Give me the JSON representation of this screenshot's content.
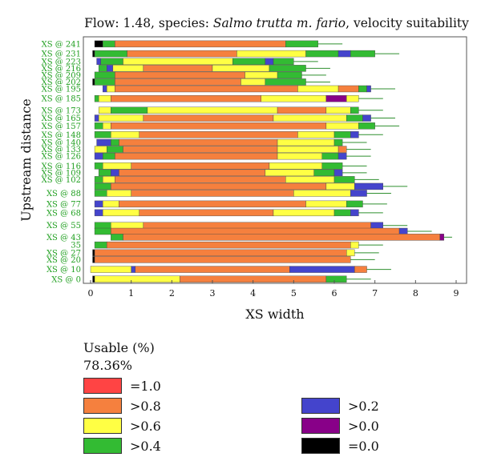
{
  "chart_data": {
    "type": "bar",
    "title_prefix": "Flow: 1.48, species: ",
    "title_species": "Salmo trutta m. fario",
    "title_suffix": ", velocity suitability",
    "xlabel": "XS width",
    "ylabel": "Upstream distance",
    "xlim": [
      0,
      9
    ],
    "xticks": [
      0,
      1,
      2,
      3,
      4,
      5,
      6,
      7,
      8,
      9
    ],
    "ylim": [
      -1,
      245
    ],
    "y_tick_labels": [
      {
        "label": "XS @ 241",
        "y": 241
      },
      {
        "label": "XS @ 231",
        "y": 231
      },
      {
        "label": "XS @ 223",
        "y": 223
      },
      {
        "label": "XS @ 216",
        "y": 216
      },
      {
        "label": "XS @ 209",
        "y": 209
      },
      {
        "label": "XS @ 202",
        "y": 202
      },
      {
        "label": "XS @ 195",
        "y": 195
      },
      {
        "label": "XS @ 185",
        "y": 185
      },
      {
        "label": "XS @ 173",
        "y": 173
      },
      {
        "label": "XS @ 165",
        "y": 165
      },
      {
        "label": "XS @ 157",
        "y": 157
      },
      {
        "label": "XS @ 148",
        "y": 148
      },
      {
        "label": "XS @ 140",
        "y": 140
      },
      {
        "label": "XS @ 133",
        "y": 133
      },
      {
        "label": "XS @ 126",
        "y": 126
      },
      {
        "label": "XS @ 116",
        "y": 116
      },
      {
        "label": "XS @ 109",
        "y": 109
      },
      {
        "label": "XS @ 102",
        "y": 102
      },
      {
        "label": "XS @ 88",
        "y": 88
      },
      {
        "label": "XS @ 77",
        "y": 77
      },
      {
        "label": "XS @ 68",
        "y": 68
      },
      {
        "label": "XS @ 55",
        "y": 55
      },
      {
        "label": "XS @ 43",
        "y": 43
      },
      {
        "label": "35",
        "y": 35
      },
      {
        "label": "XS @ 27",
        "y": 27
      },
      {
        "label": "XS @ 20",
        "y": 20
      },
      {
        "label": "XS @ 10",
        "y": 10
      },
      {
        "label": "XS @ 0",
        "y": 0
      }
    ],
    "legend": {
      "title": "Usable (%)",
      "value": "78.36%",
      "categories": [
        {
          "label": "=1.0",
          "color": "#ff4444"
        },
        {
          "label": ">0.8",
          "color": "#f5803e"
        },
        {
          "label": ">0.6",
          "color": "#ffff44"
        },
        {
          "label": ">0.4",
          "color": "#33bb33"
        },
        {
          "label": ">0.2",
          "color": "#4444cc"
        },
        {
          "label": ">0.0",
          "color": "#880088"
        },
        {
          "label": "=0.0",
          "color": "#000000"
        }
      ]
    },
    "cross_sections": [
      {
        "y": 241,
        "segments": [
          [
            0.1,
            0.3,
            "=0.0"
          ],
          [
            0.3,
            0.6,
            ">0.4"
          ],
          [
            0.6,
            4.8,
            ">0.8"
          ],
          [
            4.8,
            5.6,
            ">0.4"
          ]
        ]
      },
      {
        "y": 231,
        "segments": [
          [
            0.05,
            0.1,
            "=0.0"
          ],
          [
            0.1,
            0.9,
            ">0.4"
          ],
          [
            0.9,
            3.6,
            ">0.8"
          ],
          [
            3.6,
            5.3,
            ">0.6"
          ],
          [
            5.3,
            6.1,
            ">0.4"
          ],
          [
            6.1,
            6.4,
            ">0.2"
          ],
          [
            6.4,
            7.0,
            ">0.4"
          ]
        ]
      },
      {
        "y": 223,
        "segments": [
          [
            0.15,
            0.25,
            ">0.2"
          ],
          [
            0.25,
            0.8,
            ">0.4"
          ],
          [
            0.8,
            3.5,
            ">0.6"
          ],
          [
            3.5,
            4.3,
            ">0.4"
          ],
          [
            4.3,
            4.5,
            ">0.2"
          ],
          [
            4.5,
            5.0,
            ">0.4"
          ]
        ]
      },
      {
        "y": 216,
        "segments": [
          [
            0.2,
            0.4,
            ">0.4"
          ],
          [
            0.4,
            0.55,
            ">0.2"
          ],
          [
            0.55,
            1.3,
            ">0.6"
          ],
          [
            1.3,
            3.0,
            ">0.8"
          ],
          [
            3.0,
            4.4,
            ">0.6"
          ],
          [
            4.4,
            5.3,
            ">0.4"
          ]
        ]
      },
      {
        "y": 209,
        "segments": [
          [
            0.1,
            0.6,
            ">0.4"
          ],
          [
            0.6,
            3.8,
            ">0.8"
          ],
          [
            3.8,
            4.6,
            ">0.6"
          ],
          [
            4.6,
            5.2,
            ">0.4"
          ]
        ]
      },
      {
        "y": 202,
        "segments": [
          [
            0.05,
            0.1,
            "=0.0"
          ],
          [
            0.1,
            0.6,
            ">0.4"
          ],
          [
            0.6,
            3.7,
            ">0.8"
          ],
          [
            3.7,
            4.3,
            ">0.6"
          ],
          [
            4.3,
            5.3,
            ">0.4"
          ]
        ]
      },
      {
        "y": 195,
        "segments": [
          [
            0.3,
            0.4,
            ">0.2"
          ],
          [
            0.4,
            0.6,
            ">0.6"
          ],
          [
            0.6,
            5.1,
            ">0.8"
          ],
          [
            5.1,
            6.1,
            ">0.6"
          ],
          [
            6.1,
            6.6,
            ">0.8"
          ],
          [
            6.6,
            6.8,
            ">0.4"
          ],
          [
            6.8,
            6.9,
            ">0.2"
          ]
        ]
      },
      {
        "y": 185,
        "segments": [
          [
            0.1,
            0.2,
            ">0.4"
          ],
          [
            0.2,
            0.5,
            ">0.6"
          ],
          [
            0.5,
            4.2,
            ">0.8"
          ],
          [
            4.2,
            5.8,
            ">0.6"
          ],
          [
            5.8,
            6.3,
            ">0.0"
          ],
          [
            6.3,
            6.6,
            ">0.6"
          ]
        ]
      },
      {
        "y": 173,
        "segments": [
          [
            0.2,
            0.5,
            ">0.6"
          ],
          [
            0.5,
            1.4,
            ">0.4"
          ],
          [
            1.4,
            4.6,
            ">0.6"
          ],
          [
            4.6,
            5.8,
            ">0.8"
          ],
          [
            5.8,
            6.4,
            ">0.6"
          ],
          [
            6.4,
            6.6,
            ">0.4"
          ]
        ]
      },
      {
        "y": 165,
        "segments": [
          [
            0.1,
            0.2,
            ">0.2"
          ],
          [
            0.2,
            1.3,
            ">0.6"
          ],
          [
            1.3,
            4.5,
            ">0.8"
          ],
          [
            4.5,
            6.3,
            ">0.6"
          ],
          [
            6.3,
            6.7,
            ">0.4"
          ],
          [
            6.7,
            6.9,
            ">0.2"
          ]
        ]
      },
      {
        "y": 157,
        "segments": [
          [
            0.1,
            0.3,
            ">0.4"
          ],
          [
            0.3,
            0.5,
            ">0.6"
          ],
          [
            0.5,
            5.8,
            ">0.8"
          ],
          [
            5.8,
            6.6,
            ">0.6"
          ],
          [
            6.6,
            7.0,
            ">0.4"
          ]
        ]
      },
      {
        "y": 148,
        "segments": [
          [
            0.1,
            0.5,
            ">0.4"
          ],
          [
            0.5,
            1.2,
            ">0.6"
          ],
          [
            1.2,
            5.1,
            ">0.8"
          ],
          [
            5.1,
            6.0,
            ">0.6"
          ],
          [
            6.0,
            6.4,
            ">0.4"
          ],
          [
            6.4,
            6.6,
            ">0.2"
          ]
        ]
      },
      {
        "y": 140,
        "segments": [
          [
            0.15,
            0.5,
            ">0.2"
          ],
          [
            0.5,
            0.7,
            ">0.4"
          ],
          [
            0.7,
            4.6,
            ">0.8"
          ],
          [
            4.6,
            6.0,
            ">0.6"
          ],
          [
            6.0,
            6.2,
            ">0.4"
          ]
        ]
      },
      {
        "y": 133,
        "segments": [
          [
            0.1,
            0.4,
            ">0.6"
          ],
          [
            0.4,
            0.8,
            ">0.4"
          ],
          [
            0.8,
            4.6,
            ">0.8"
          ],
          [
            4.6,
            6.1,
            ">0.6"
          ],
          [
            6.1,
            6.3,
            ">0.8"
          ]
        ]
      },
      {
        "y": 126,
        "segments": [
          [
            0.1,
            0.3,
            ">0.2"
          ],
          [
            0.3,
            0.6,
            ">0.4"
          ],
          [
            0.6,
            4.6,
            ">0.8"
          ],
          [
            4.6,
            5.7,
            ">0.6"
          ],
          [
            5.7,
            6.1,
            ">0.4"
          ],
          [
            6.1,
            6.3,
            ">0.2"
          ]
        ]
      },
      {
        "y": 116,
        "segments": [
          [
            0.1,
            0.3,
            ">0.4"
          ],
          [
            0.3,
            1.0,
            ">0.6"
          ],
          [
            1.0,
            4.4,
            ">0.8"
          ],
          [
            4.4,
            5.7,
            ">0.6"
          ],
          [
            5.7,
            6.2,
            ">0.4"
          ]
        ]
      },
      {
        "y": 109,
        "segments": [
          [
            0.2,
            0.5,
            ">0.4"
          ],
          [
            0.5,
            0.7,
            ">0.2"
          ],
          [
            0.7,
            4.3,
            ">0.8"
          ],
          [
            4.3,
            5.5,
            ">0.6"
          ],
          [
            5.5,
            6.0,
            ">0.4"
          ],
          [
            6.0,
            6.2,
            ">0.2"
          ]
        ]
      },
      {
        "y": 102,
        "segments": [
          [
            0.1,
            0.3,
            ">0.4"
          ],
          [
            0.3,
            0.6,
            ">0.6"
          ],
          [
            0.6,
            4.8,
            ">0.8"
          ],
          [
            4.8,
            6.0,
            ">0.6"
          ],
          [
            6.0,
            6.5,
            ">0.4"
          ]
        ]
      },
      {
        "y": 95,
        "segments": [
          [
            0.1,
            0.5,
            ">0.4"
          ],
          [
            0.5,
            5.8,
            ">0.8"
          ],
          [
            5.8,
            6.5,
            ">0.6"
          ],
          [
            6.5,
            7.2,
            ">0.2"
          ]
        ]
      },
      {
        "y": 88,
        "segments": [
          [
            0.1,
            0.4,
            ">0.4"
          ],
          [
            0.4,
            1.0,
            ">0.6"
          ],
          [
            1.0,
            5.0,
            ">0.8"
          ],
          [
            5.0,
            6.4,
            ">0.6"
          ],
          [
            6.4,
            6.8,
            ">0.2"
          ]
        ]
      },
      {
        "y": 77,
        "segments": [
          [
            0.1,
            0.3,
            ">0.2"
          ],
          [
            0.3,
            0.7,
            ">0.6"
          ],
          [
            0.7,
            5.3,
            ">0.8"
          ],
          [
            5.3,
            6.3,
            ">0.6"
          ],
          [
            6.3,
            6.7,
            ">0.4"
          ]
        ]
      },
      {
        "y": 68,
        "segments": [
          [
            0.1,
            0.3,
            ">0.2"
          ],
          [
            0.3,
            1.2,
            ">0.6"
          ],
          [
            1.2,
            4.5,
            ">0.8"
          ],
          [
            4.5,
            6.0,
            ">0.6"
          ],
          [
            6.0,
            6.4,
            ">0.4"
          ],
          [
            6.4,
            6.6,
            ">0.2"
          ]
        ]
      },
      {
        "y": 55,
        "segments": [
          [
            0.1,
            0.5,
            ">0.4"
          ],
          [
            0.5,
            1.3,
            ">0.6"
          ],
          [
            1.3,
            6.9,
            ">0.8"
          ],
          [
            6.9,
            7.2,
            ">0.2"
          ]
        ]
      },
      {
        "y": 49,
        "segments": [
          [
            0.1,
            0.5,
            ">0.4"
          ],
          [
            0.5,
            7.6,
            ">0.8"
          ],
          [
            7.6,
            7.8,
            ">0.2"
          ]
        ]
      },
      {
        "y": 43,
        "segments": [
          [
            0.5,
            0.8,
            ">0.4"
          ],
          [
            0.8,
            8.6,
            ">0.8"
          ],
          [
            8.6,
            8.7,
            ">0.0"
          ]
        ]
      },
      {
        "y": 35,
        "segments": [
          [
            0.1,
            0.4,
            ">0.4"
          ],
          [
            0.4,
            6.4,
            ">0.8"
          ],
          [
            6.4,
            6.6,
            ">0.6"
          ]
        ]
      },
      {
        "y": 27,
        "segments": [
          [
            0.05,
            0.1,
            "=0.0"
          ],
          [
            0.1,
            6.3,
            ">0.8"
          ],
          [
            6.3,
            6.5,
            ">0.6"
          ]
        ]
      },
      {
        "y": 20,
        "segments": [
          [
            0.05,
            0.1,
            "=0.0"
          ],
          [
            0.1,
            6.4,
            ">0.8"
          ]
        ]
      },
      {
        "y": 10,
        "segments": [
          [
            0.0,
            1.0,
            ">0.6"
          ],
          [
            1.0,
            1.1,
            ">0.2"
          ],
          [
            1.1,
            4.9,
            ">0.8"
          ],
          [
            4.9,
            6.5,
            ">0.2"
          ],
          [
            6.5,
            6.8,
            ">0.8"
          ]
        ]
      },
      {
        "y": 0,
        "segments": [
          [
            0.05,
            0.1,
            "=0.0"
          ],
          [
            0.1,
            2.2,
            ">0.6"
          ],
          [
            2.2,
            5.8,
            ">0.8"
          ],
          [
            5.8,
            6.3,
            ">0.4"
          ]
        ]
      }
    ]
  }
}
